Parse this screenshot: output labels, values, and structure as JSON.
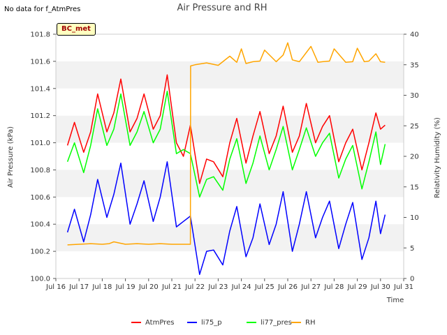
{
  "chart_data": {
    "type": "line",
    "title": "Air Pressure and RH",
    "xlabel": "Time",
    "ylabel": "Air Pressure (kPa)",
    "y2label": "Relativity Humidity (%)",
    "no_data_note": "No data for f_AtmPres",
    "station_label": "BC_met",
    "x_ticks": [
      "Jul 16",
      "Jul 17",
      "Jul 18",
      "Jul 19",
      "Jul 20",
      "Jul 21",
      "Jul 22",
      "Jul 23",
      "Jul 24",
      "Jul 25",
      "Jul 26",
      "Jul 27",
      "Jul 28",
      "Jul 29",
      "Jul 30",
      "Jul 31"
    ],
    "x_range_days": [
      16,
      31
    ],
    "ylim": [
      100.0,
      101.8
    ],
    "y_ticks": [
      "100.0",
      "100.2",
      "100.4",
      "100.6",
      "100.8",
      "101.0",
      "101.2",
      "101.4",
      "101.6",
      "101.8"
    ],
    "y2lim": [
      0,
      40
    ],
    "y2_ticks": [
      "0",
      "5",
      "10",
      "15",
      "20",
      "25",
      "30",
      "35",
      "40"
    ],
    "grid": "horizontal bands",
    "legend_position": "bottom",
    "series": [
      {
        "name": "AtmPres",
        "axis": "left",
        "color": "#ff0000",
        "x": [
          16.5,
          16.8,
          17.2,
          17.5,
          17.8,
          18.2,
          18.5,
          18.8,
          19.2,
          19.5,
          19.8,
          20.2,
          20.5,
          20.8,
          21.2,
          21.5,
          21.8,
          22.2,
          22.5,
          22.8,
          23.2,
          23.5,
          23.8,
          24.2,
          24.5,
          24.8,
          25.2,
          25.5,
          25.8,
          26.2,
          26.5,
          26.8,
          27.2,
          27.5,
          27.8,
          28.2,
          28.5,
          28.8,
          29.2,
          29.5,
          29.8,
          30.0,
          30.2
        ],
        "y": [
          100.98,
          101.15,
          100.93,
          101.08,
          101.36,
          101.08,
          101.22,
          101.47,
          101.08,
          101.18,
          101.36,
          101.1,
          101.2,
          101.5,
          101.0,
          100.9,
          101.13,
          100.7,
          100.88,
          100.86,
          100.75,
          101.0,
          101.18,
          100.85,
          101.05,
          101.23,
          100.92,
          101.05,
          101.27,
          100.93,
          101.05,
          101.29,
          101.0,
          101.12,
          101.2,
          100.86,
          101.0,
          101.1,
          100.8,
          101.0,
          101.22,
          101.1,
          101.13
        ]
      },
      {
        "name": "li75_p",
        "axis": "left",
        "color": "#0000ff",
        "x": [
          16.5,
          16.8,
          17.2,
          17.5,
          17.8,
          18.2,
          18.5,
          18.8,
          19.2,
          19.5,
          19.8,
          20.2,
          20.5,
          20.8,
          21.2,
          21.5,
          21.8,
          22.2,
          22.5,
          22.8,
          23.2,
          23.5,
          23.8,
          24.2,
          24.5,
          24.8,
          25.2,
          25.5,
          25.8,
          26.2,
          26.5,
          26.8,
          27.2,
          27.5,
          27.8,
          28.2,
          28.5,
          28.8,
          29.2,
          29.5,
          29.8,
          30.0,
          30.2
        ],
        "y": [
          100.34,
          100.51,
          100.27,
          100.47,
          100.73,
          100.45,
          100.62,
          100.85,
          100.4,
          100.55,
          100.72,
          100.42,
          100.6,
          100.86,
          100.38,
          100.42,
          100.46,
          100.03,
          100.2,
          100.21,
          100.1,
          100.35,
          100.53,
          100.16,
          100.3,
          100.55,
          100.25,
          100.4,
          100.64,
          100.2,
          100.4,
          100.64,
          100.3,
          100.45,
          100.57,
          100.22,
          100.4,
          100.56,
          100.14,
          100.3,
          100.57,
          100.33,
          100.47
        ]
      },
      {
        "name": "li77_pres",
        "axis": "left",
        "color": "#00ff00",
        "x": [
          16.5,
          16.8,
          17.2,
          17.5,
          17.8,
          18.2,
          18.5,
          18.8,
          19.2,
          19.5,
          19.8,
          20.2,
          20.5,
          20.8,
          21.2,
          21.5,
          21.8,
          22.2,
          22.5,
          22.8,
          23.2,
          23.5,
          23.8,
          24.2,
          24.5,
          24.8,
          25.2,
          25.5,
          25.8,
          26.2,
          26.5,
          26.8,
          27.2,
          27.5,
          27.8,
          28.2,
          28.5,
          28.8,
          29.2,
          29.5,
          29.8,
          30.0,
          30.2
        ],
        "y": [
          100.86,
          101.0,
          100.78,
          100.98,
          101.25,
          100.98,
          101.1,
          101.36,
          100.98,
          101.08,
          101.23,
          101.0,
          101.1,
          101.38,
          100.92,
          100.95,
          100.92,
          100.6,
          100.73,
          100.75,
          100.65,
          100.88,
          101.03,
          100.7,
          100.85,
          101.05,
          100.8,
          100.95,
          101.12,
          100.8,
          100.95,
          101.11,
          100.9,
          101.0,
          101.07,
          100.74,
          100.88,
          100.98,
          100.66,
          100.86,
          101.08,
          100.84,
          100.99
        ]
      },
      {
        "name": "RH",
        "axis": "right",
        "color": "#ffa500",
        "x": [
          16.5,
          17.0,
          17.5,
          18.0,
          18.3,
          18.5,
          19.0,
          19.5,
          20.0,
          20.5,
          21.0,
          21.5,
          21.8,
          21.81,
          22.0,
          22.5,
          23.0,
          23.5,
          23.8,
          24.0,
          24.2,
          24.5,
          24.8,
          25.0,
          25.5,
          25.8,
          26.0,
          26.2,
          26.5,
          27.0,
          27.3,
          27.5,
          27.8,
          28.0,
          28.5,
          28.8,
          29.0,
          29.3,
          29.5,
          29.8,
          30.0,
          30.2
        ],
        "y": [
          5.5,
          5.6,
          5.7,
          5.6,
          5.7,
          6.0,
          5.6,
          5.7,
          5.6,
          5.7,
          5.6,
          5.6,
          5.6,
          34.8,
          35.0,
          35.3,
          34.9,
          36.4,
          35.4,
          37.6,
          35.2,
          35.5,
          35.6,
          37.4,
          35.5,
          36.6,
          38.6,
          35.8,
          35.5,
          38.0,
          35.4,
          35.5,
          35.6,
          37.6,
          35.4,
          35.5,
          37.7,
          35.5,
          35.6,
          36.8,
          35.5,
          35.4
        ]
      }
    ]
  }
}
